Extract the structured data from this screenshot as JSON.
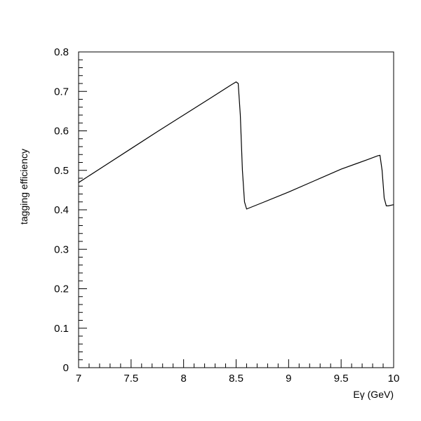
{
  "chart_data": {
    "type": "line",
    "xlabel": "Eγ (GeV)",
    "ylabel": "tagging efficiency",
    "xlim": [
      7,
      10
    ],
    "ylim": [
      0,
      0.8
    ],
    "grid": false,
    "x_ticks_major": [
      "7",
      "7.5",
      "8",
      "8.5",
      "9",
      "9.5",
      "10"
    ],
    "x_tick_values": [
      7,
      7.5,
      8,
      8.5,
      9,
      9.5,
      10
    ],
    "y_ticks_major": [
      "0",
      "0.1",
      "0.2",
      "0.3",
      "0.4",
      "0.5",
      "0.6",
      "0.7",
      "0.8"
    ],
    "y_tick_values": [
      0,
      0.1,
      0.2,
      0.3,
      0.4,
      0.5,
      0.6,
      0.7,
      0.8
    ],
    "series": [
      {
        "x": [
          7.0,
          7.25,
          7.5,
          7.75,
          8.0,
          8.25,
          8.45,
          8.5,
          8.52,
          8.54,
          8.56,
          8.58,
          8.6,
          8.75,
          9.0,
          9.25,
          9.5,
          9.75,
          9.85,
          9.87,
          9.89,
          9.91,
          9.93,
          9.95,
          10.0
        ],
        "y": [
          0.469,
          0.512,
          0.555,
          0.598,
          0.64,
          0.682,
          0.716,
          0.724,
          0.72,
          0.64,
          0.5,
          0.42,
          0.402,
          0.418,
          0.445,
          0.474,
          0.503,
          0.527,
          0.537,
          0.538,
          0.5,
          0.43,
          0.41,
          0.41,
          0.413
        ]
      }
    ]
  }
}
